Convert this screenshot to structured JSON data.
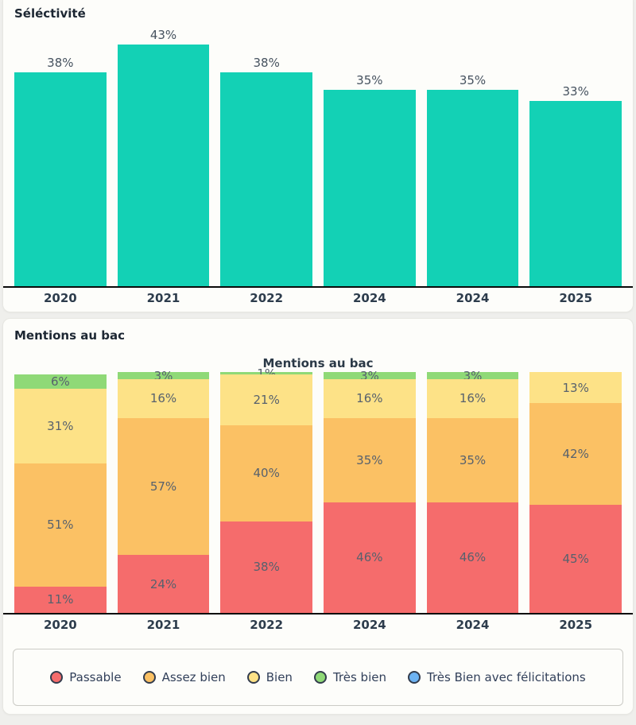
{
  "selectivity": {
    "section_title": "Séléctivité",
    "chart_data": {
      "type": "bar",
      "title": "Séléctivité",
      "categories": [
        "2020",
        "2021",
        "2022",
        "2024",
        "2024",
        "2025"
      ],
      "values": [
        38,
        43,
        38,
        35,
        35,
        33
      ],
      "labels": [
        "38%",
        "43%",
        "38%",
        "35%",
        "35%",
        "33%"
      ],
      "unit": "%",
      "bar_color": "#13d1b5",
      "xlabel": "",
      "ylabel": "",
      "ylim": [
        0,
        47
      ],
      "grid": false,
      "legend_position": "none"
    }
  },
  "mentions": {
    "section_title": "Mentions au bac",
    "chart_title": "Mentions au bac",
    "chart_data": {
      "type": "stacked-bar",
      "title": "Mentions au bac",
      "categories": [
        "2020",
        "2021",
        "2022",
        "2024",
        "2024",
        "2025"
      ],
      "unit": "%",
      "ylim": [
        0,
        100
      ],
      "grid": false,
      "legend_position": "bottom",
      "series": [
        {
          "name": "Passable",
          "slug": "passable",
          "color": "#f56c6c",
          "values": [
            11,
            24,
            38,
            46,
            46,
            45
          ]
        },
        {
          "name": "Assez bien",
          "slug": "assez-bien",
          "color": "#fbc164",
          "values": [
            51,
            57,
            40,
            35,
            35,
            42
          ]
        },
        {
          "name": "Bien",
          "slug": "bien",
          "color": "#fde287",
          "values": [
            31,
            16,
            21,
            16,
            16,
            13
          ]
        },
        {
          "name": "Très bien",
          "slug": "tres-bien",
          "color": "#8fd977",
          "values": [
            6,
            3,
            1,
            3,
            3,
            0
          ]
        },
        {
          "name": "Très Bien avec félicitations",
          "slug": "tres-bien-avec-felicitations",
          "color": "#6db3f3",
          "values": [
            0,
            0,
            0,
            0,
            0,
            0
          ]
        }
      ]
    }
  }
}
